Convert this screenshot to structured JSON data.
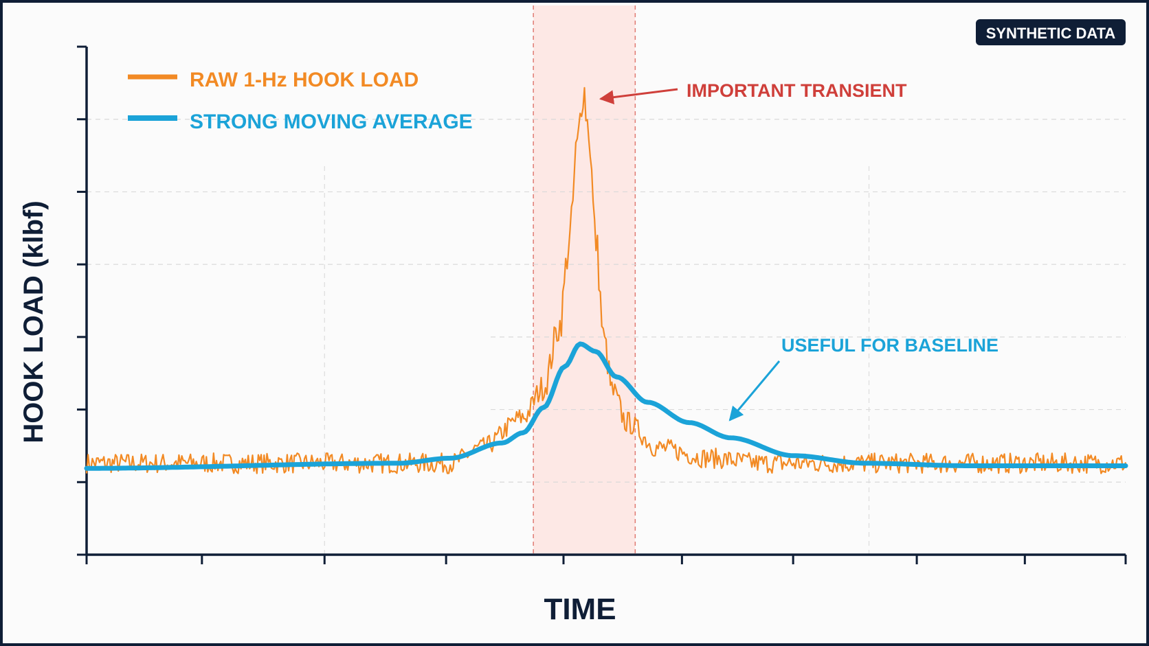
{
  "badge": {
    "text": "SYNTHETIC DATA",
    "bg": "#0f1e36",
    "fg": "#ffffff"
  },
  "chart_data": {
    "type": "line",
    "title": "",
    "xlabel": "TIME",
    "ylabel": "HOOK LOAD (klbf)",
    "x_tick_labels": "none",
    "y_tick_labels": "none",
    "grid": true,
    "legend_placement": "top-left",
    "colors": {
      "raw": "#f28a24",
      "average": "#1ba3d8",
      "highlight_band": "#fde8e5",
      "highlight_edge": "#e07a72",
      "transient_annotation": "#cf3f3a",
      "baseline_annotation": "#1ba3d8",
      "axis": "#0f1e36"
    },
    "series": [
      {
        "name": "RAW 1-Hz HOOK LOAD",
        "style": "noisy line",
        "note_of_shape": "flat noisy baseline with a sharp spike inside the highlighted window",
        "points": [
          [
            0,
            0.18
          ],
          [
            0.35,
            0.18
          ],
          [
            0.38,
            0.21
          ],
          [
            0.42,
            0.27
          ],
          [
            0.44,
            0.33
          ],
          [
            0.455,
            0.45
          ],
          [
            0.465,
            0.62
          ],
          [
            0.472,
            0.8
          ],
          [
            0.478,
            0.92
          ],
          [
            0.483,
            0.84
          ],
          [
            0.49,
            0.62
          ],
          [
            0.498,
            0.42
          ],
          [
            0.506,
            0.32
          ],
          [
            0.52,
            0.26
          ],
          [
            0.55,
            0.21
          ],
          [
            0.6,
            0.19
          ],
          [
            0.65,
            0.18
          ],
          [
            1,
            0.18
          ]
        ]
      },
      {
        "name": "STRONG MOVING AVERAGE",
        "style": "smooth thick line",
        "points": [
          [
            0,
            0.17
          ],
          [
            0.3,
            0.18
          ],
          [
            0.35,
            0.19
          ],
          [
            0.4,
            0.22
          ],
          [
            0.42,
            0.24
          ],
          [
            0.44,
            0.29
          ],
          [
            0.46,
            0.37
          ],
          [
            0.475,
            0.415
          ],
          [
            0.49,
            0.4
          ],
          [
            0.51,
            0.35
          ],
          [
            0.54,
            0.3
          ],
          [
            0.58,
            0.26
          ],
          [
            0.62,
            0.23
          ],
          [
            0.68,
            0.195
          ],
          [
            0.75,
            0.18
          ],
          [
            0.85,
            0.175
          ],
          [
            1,
            0.175
          ]
        ]
      }
    ],
    "highlight_window": [
      0.43,
      0.528
    ],
    "annotations": [
      {
        "text": "IMPORTANT TRANSIENT",
        "points_to": "raw series peak"
      },
      {
        "text": "USEFUL FOR BASELINE",
        "points_to": "moving average tail"
      }
    ],
    "legend": [
      {
        "label": "RAW 1-Hz HOOK LOAD",
        "series": 0
      },
      {
        "label": "STRONG MOVING AVERAGE",
        "series": 1
      }
    ]
  }
}
